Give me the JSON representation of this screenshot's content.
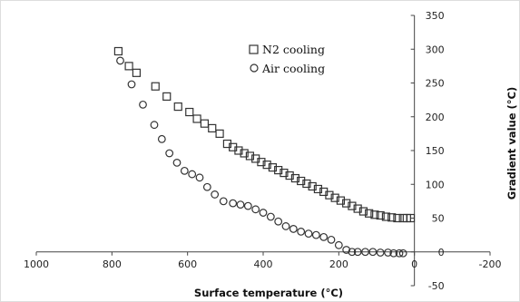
{
  "chart_data": {
    "type": "scatter",
    "title": "",
    "xlabel": "Surface temperature (°C)",
    "ylabel": "Gradient value (°C)",
    "xlim": [
      1000,
      -200
    ],
    "ylim": [
      -50,
      350
    ],
    "x_reversed": true,
    "x_ticks": [
      "1000",
      "800",
      "600",
      "400",
      "200",
      "0",
      "-200"
    ],
    "y_ticks": [
      "-50",
      "0",
      "50",
      "100",
      "150",
      "200",
      "250",
      "300",
      "350"
    ],
    "y_axis_side": "right",
    "grid": false,
    "legend_position": "top-center",
    "series": [
      {
        "name": "N2 cooling",
        "marker": "square",
        "color": "#333333",
        "x": [
          783,
          755,
          735,
          685,
          655,
          625,
          595,
          575,
          555,
          535,
          515,
          495,
          480,
          465,
          450,
          435,
          420,
          405,
          390,
          375,
          360,
          345,
          330,
          315,
          300,
          285,
          270,
          255,
          240,
          225,
          210,
          195,
          180,
          165,
          150,
          135,
          120,
          105,
          90,
          75,
          60,
          45,
          30,
          20,
          10
        ],
        "y": [
          297,
          275,
          265,
          245,
          230,
          215,
          207,
          197,
          190,
          183,
          175,
          160,
          155,
          150,
          146,
          142,
          138,
          133,
          129,
          125,
          121,
          117,
          113,
          109,
          105,
          101,
          97,
          93,
          89,
          84,
          80,
          76,
          72,
          68,
          64,
          60,
          57,
          55,
          54,
          52,
          51,
          50,
          50,
          50,
          50
        ]
      },
      {
        "name": "Air cooling",
        "marker": "circle",
        "color": "#333333",
        "x": [
          778,
          748,
          718,
          688,
          668,
          648,
          628,
          608,
          588,
          568,
          548,
          528,
          505,
          480,
          460,
          440,
          420,
          400,
          380,
          360,
          340,
          320,
          300,
          280,
          260,
          240,
          220,
          200,
          180,
          165,
          150,
          130,
          110,
          90,
          70,
          55,
          40,
          30
        ],
        "y": [
          283,
          248,
          218,
          188,
          167,
          146,
          132,
          120,
          115,
          110,
          96,
          85,
          75,
          72,
          70,
          68,
          63,
          58,
          52,
          45,
          38,
          34,
          30,
          27,
          25,
          22,
          18,
          10,
          3,
          0,
          0,
          0,
          0,
          -1,
          -1,
          -2,
          -2,
          -2
        ]
      }
    ]
  }
}
